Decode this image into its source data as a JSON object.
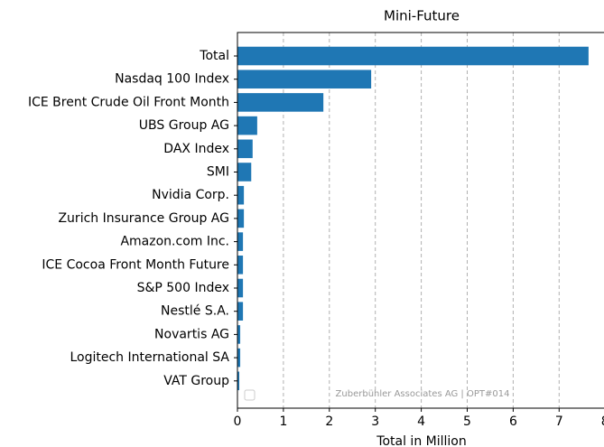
{
  "chart_data": {
    "type": "barh",
    "title": "Mini-Future",
    "x_label": "Total in Million",
    "annotation": "Zuberbühler Associates AG | OPT#014",
    "categories": [
      "Total",
      "Nasdaq 100 Index",
      "ICE Brent Crude Oil Front Month",
      "UBS Group AG",
      "DAX Index",
      "SMI",
      "Nvidia Corp.",
      "Zurich Insurance Group AG",
      "Amazon.com Inc.",
      "ICE Cocoa Front Month Future",
      "S&P 500 Index",
      "Nestlé S.A.",
      "Novartis AG",
      "Logitech International SA",
      "VAT Group"
    ],
    "values": [
      7.64,
      2.91,
      1.87,
      0.43,
      0.33,
      0.3,
      0.14,
      0.14,
      0.12,
      0.12,
      0.12,
      0.12,
      0.06,
      0.06,
      0.04
    ],
    "color": "#1f77b4",
    "xlim": [
      0,
      8.03
    ],
    "xticks": [
      0,
      1,
      2,
      3,
      4,
      5,
      6,
      7,
      8
    ],
    "grid": true
  }
}
